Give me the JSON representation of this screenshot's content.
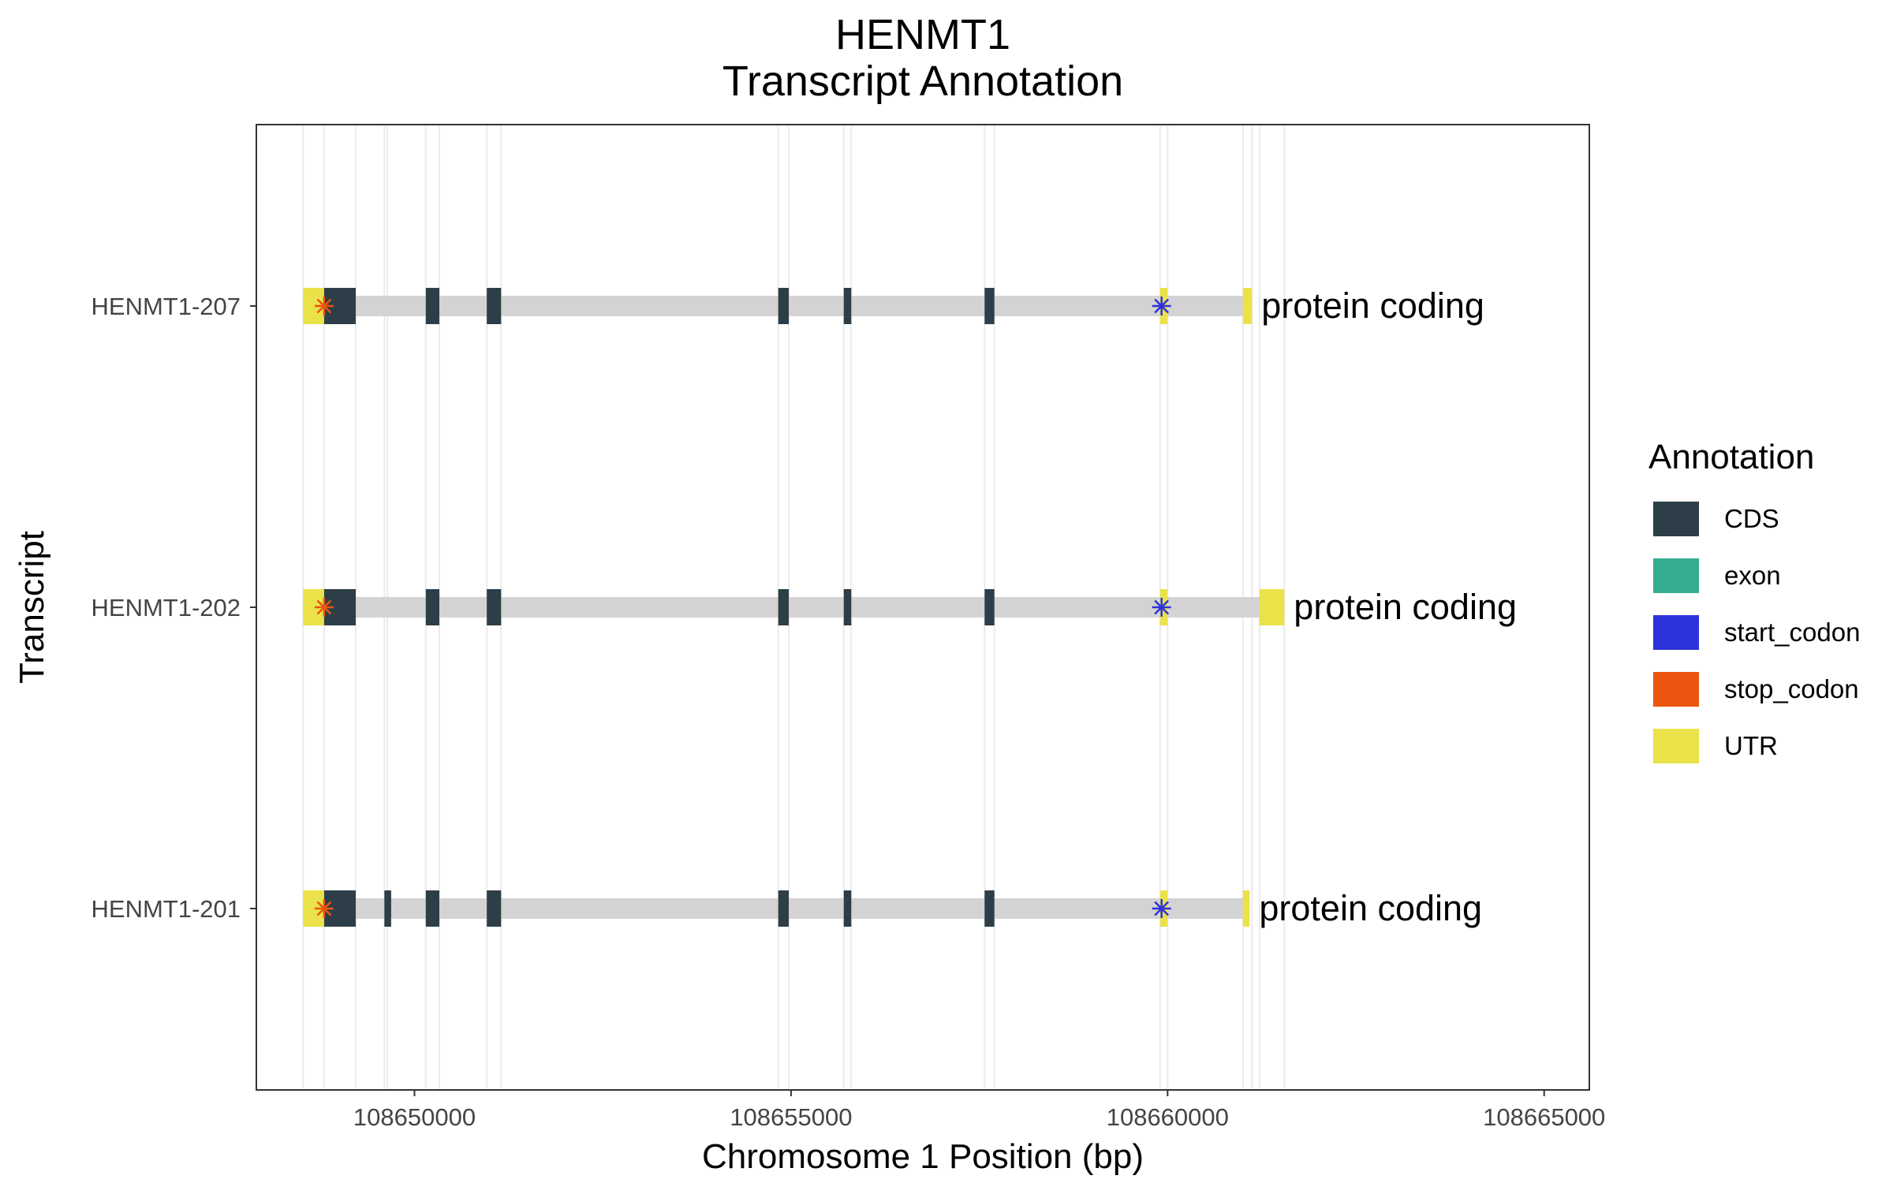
{
  "chart_data": {
    "type": "gene-track",
    "title": "HENMT1",
    "subtitle": "Transcript Annotation",
    "xlabel": "Chromosome 1 Position (bp)",
    "ylabel": "Transcript",
    "xlim": [
      108647900,
      108665600
    ],
    "xticks": [
      108650000,
      108655000,
      108660000,
      108665000
    ],
    "xtick_labels": [
      "108650000",
      "108655000",
      "108660000",
      "108665000"
    ],
    "grid": "vertical lines at feature boundaries",
    "legend": {
      "title": "Annotation",
      "placement": "right",
      "entries": [
        {
          "name": "CDS",
          "color": "#2d3e48"
        },
        {
          "name": "exon",
          "color": "#35ab90"
        },
        {
          "name": "start_codon",
          "color": "#2e32d9"
        },
        {
          "name": "stop_codon",
          "color": "#ea5510"
        },
        {
          "name": "UTR",
          "color": "#ebe24a"
        }
      ]
    },
    "colors": {
      "intron_bar": "#d3d3d3",
      "grid": "#ebebeb"
    },
    "gridlines": [
      108648520,
      108648800,
      108649220,
      108649600,
      108649640,
      108650150,
      108650330,
      108650960,
      108651150,
      108654830,
      108654970,
      108655700,
      108655800,
      108657570,
      108657700,
      108659900,
      108660000,
      108661000,
      108661120,
      108661220,
      108661550
    ],
    "transcripts": [
      {
        "name": "HENMT1-207",
        "biotype": "protein coding",
        "span": [
          108648520,
          108661120
        ],
        "utr": [
          [
            108648520,
            108648800
          ],
          [
            108659900,
            108660000
          ],
          [
            108661000,
            108661120
          ]
        ],
        "cds": [
          [
            108648800,
            108649220
          ],
          [
            108650150,
            108650330
          ],
          [
            108650960,
            108651150
          ],
          [
            108654830,
            108654970
          ],
          [
            108655700,
            108655800
          ],
          [
            108657570,
            108657700
          ]
        ],
        "stop_codon": 108648800,
        "start_codon": 108659920
      },
      {
        "name": "HENMT1-202",
        "biotype": "protein coding",
        "span": [
          108648520,
          108661550
        ],
        "utr": [
          [
            108648520,
            108648800
          ],
          [
            108659900,
            108660000
          ],
          [
            108661220,
            108661550
          ]
        ],
        "cds": [
          [
            108648800,
            108649220
          ],
          [
            108650150,
            108650330
          ],
          [
            108650960,
            108651150
          ],
          [
            108654830,
            108654970
          ],
          [
            108655700,
            108655800
          ],
          [
            108657570,
            108657700
          ]
        ],
        "stop_codon": 108648800,
        "start_codon": 108659920
      },
      {
        "name": "HENMT1-201",
        "biotype": "protein coding",
        "span": [
          108648520,
          108661090
        ],
        "utr": [
          [
            108648520,
            108648800
          ],
          [
            108659900,
            108660000
          ],
          [
            108661000,
            108661090
          ]
        ],
        "cds": [
          [
            108648800,
            108649220
          ],
          [
            108649600,
            108649690
          ],
          [
            108650150,
            108650330
          ],
          [
            108650960,
            108651150
          ],
          [
            108654830,
            108654970
          ],
          [
            108655700,
            108655800
          ],
          [
            108657570,
            108657700
          ]
        ],
        "stop_codon": 108648800,
        "start_codon": 108659920
      }
    ]
  }
}
